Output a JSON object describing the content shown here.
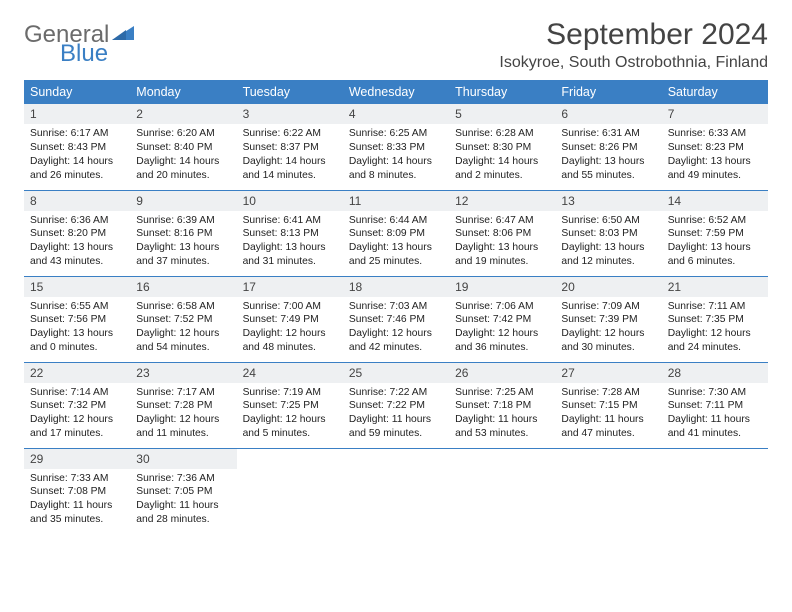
{
  "logo": {
    "general": "General",
    "blue": "Blue"
  },
  "title": "September 2024",
  "location": "Isokyroe, South Ostrobothnia, Finland",
  "colors": {
    "header_bg": "#3a7fc4",
    "header_fg": "#ffffff",
    "daynum_bg": "#eef0f2",
    "border": "#3a7fc4",
    "text": "#222222",
    "logo_gray": "#6b6b6b",
    "logo_blue": "#3a7fc4",
    "page_bg": "#ffffff"
  },
  "typography": {
    "title_fontsize": 30,
    "location_fontsize": 16,
    "weekday_fontsize": 12.5,
    "daynum_fontsize": 12,
    "body_fontsize": 10.3
  },
  "weekdays": [
    "Sunday",
    "Monday",
    "Tuesday",
    "Wednesday",
    "Thursday",
    "Friday",
    "Saturday"
  ],
  "weeks": [
    [
      {
        "n": "1",
        "sunrise": "6:17 AM",
        "sunset": "8:43 PM",
        "daylight": "14 hours and 26 minutes."
      },
      {
        "n": "2",
        "sunrise": "6:20 AM",
        "sunset": "8:40 PM",
        "daylight": "14 hours and 20 minutes."
      },
      {
        "n": "3",
        "sunrise": "6:22 AM",
        "sunset": "8:37 PM",
        "daylight": "14 hours and 14 minutes."
      },
      {
        "n": "4",
        "sunrise": "6:25 AM",
        "sunset": "8:33 PM",
        "daylight": "14 hours and 8 minutes."
      },
      {
        "n": "5",
        "sunrise": "6:28 AM",
        "sunset": "8:30 PM",
        "daylight": "14 hours and 2 minutes."
      },
      {
        "n": "6",
        "sunrise": "6:31 AM",
        "sunset": "8:26 PM",
        "daylight": "13 hours and 55 minutes."
      },
      {
        "n": "7",
        "sunrise": "6:33 AM",
        "sunset": "8:23 PM",
        "daylight": "13 hours and 49 minutes."
      }
    ],
    [
      {
        "n": "8",
        "sunrise": "6:36 AM",
        "sunset": "8:20 PM",
        "daylight": "13 hours and 43 minutes."
      },
      {
        "n": "9",
        "sunrise": "6:39 AM",
        "sunset": "8:16 PM",
        "daylight": "13 hours and 37 minutes."
      },
      {
        "n": "10",
        "sunrise": "6:41 AM",
        "sunset": "8:13 PM",
        "daylight": "13 hours and 31 minutes."
      },
      {
        "n": "11",
        "sunrise": "6:44 AM",
        "sunset": "8:09 PM",
        "daylight": "13 hours and 25 minutes."
      },
      {
        "n": "12",
        "sunrise": "6:47 AM",
        "sunset": "8:06 PM",
        "daylight": "13 hours and 19 minutes."
      },
      {
        "n": "13",
        "sunrise": "6:50 AM",
        "sunset": "8:03 PM",
        "daylight": "13 hours and 12 minutes."
      },
      {
        "n": "14",
        "sunrise": "6:52 AM",
        "sunset": "7:59 PM",
        "daylight": "13 hours and 6 minutes."
      }
    ],
    [
      {
        "n": "15",
        "sunrise": "6:55 AM",
        "sunset": "7:56 PM",
        "daylight": "13 hours and 0 minutes."
      },
      {
        "n": "16",
        "sunrise": "6:58 AM",
        "sunset": "7:52 PM",
        "daylight": "12 hours and 54 minutes."
      },
      {
        "n": "17",
        "sunrise": "7:00 AM",
        "sunset": "7:49 PM",
        "daylight": "12 hours and 48 minutes."
      },
      {
        "n": "18",
        "sunrise": "7:03 AM",
        "sunset": "7:46 PM",
        "daylight": "12 hours and 42 minutes."
      },
      {
        "n": "19",
        "sunrise": "7:06 AM",
        "sunset": "7:42 PM",
        "daylight": "12 hours and 36 minutes."
      },
      {
        "n": "20",
        "sunrise": "7:09 AM",
        "sunset": "7:39 PM",
        "daylight": "12 hours and 30 minutes."
      },
      {
        "n": "21",
        "sunrise": "7:11 AM",
        "sunset": "7:35 PM",
        "daylight": "12 hours and 24 minutes."
      }
    ],
    [
      {
        "n": "22",
        "sunrise": "7:14 AM",
        "sunset": "7:32 PM",
        "daylight": "12 hours and 17 minutes."
      },
      {
        "n": "23",
        "sunrise": "7:17 AM",
        "sunset": "7:28 PM",
        "daylight": "12 hours and 11 minutes."
      },
      {
        "n": "24",
        "sunrise": "7:19 AM",
        "sunset": "7:25 PM",
        "daylight": "12 hours and 5 minutes."
      },
      {
        "n": "25",
        "sunrise": "7:22 AM",
        "sunset": "7:22 PM",
        "daylight": "11 hours and 59 minutes."
      },
      {
        "n": "26",
        "sunrise": "7:25 AM",
        "sunset": "7:18 PM",
        "daylight": "11 hours and 53 minutes."
      },
      {
        "n": "27",
        "sunrise": "7:28 AM",
        "sunset": "7:15 PM",
        "daylight": "11 hours and 47 minutes."
      },
      {
        "n": "28",
        "sunrise": "7:30 AM",
        "sunset": "7:11 PM",
        "daylight": "11 hours and 41 minutes."
      }
    ],
    [
      {
        "n": "29",
        "sunrise": "7:33 AM",
        "sunset": "7:08 PM",
        "daylight": "11 hours and 35 minutes."
      },
      {
        "n": "30",
        "sunrise": "7:36 AM",
        "sunset": "7:05 PM",
        "daylight": "11 hours and 28 minutes."
      },
      null,
      null,
      null,
      null,
      null
    ]
  ],
  "labels": {
    "sunrise": "Sunrise: ",
    "sunset": "Sunset: ",
    "daylight": "Daylight: "
  }
}
